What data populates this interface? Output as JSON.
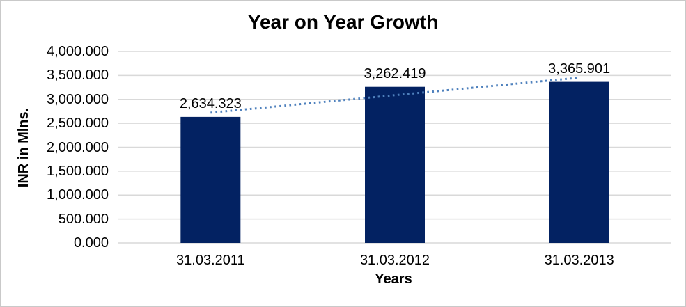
{
  "chart_data": {
    "type": "bar",
    "title": "Year on Year Growth",
    "xlabel": "Years",
    "ylabel": "INR in Mlns.",
    "categories": [
      "31.03.2011",
      "31.03.2012",
      "31.03.2013"
    ],
    "values": [
      2634.323,
      3262.419,
      3365.901
    ],
    "value_labels": [
      "2,634.323",
      "3,262.419",
      "3,365.901"
    ],
    "ylim": [
      0,
      4000
    ],
    "y_ticks": [
      0,
      500,
      1000,
      1500,
      2000,
      2500,
      3000,
      3500,
      4000
    ],
    "y_tick_labels": [
      "0.000",
      "500.000",
      "1,000.000",
      "1,500.000",
      "2,000.000",
      "2,500.000",
      "3,000.000",
      "3,500.000",
      "4,000.000"
    ],
    "grid": true,
    "legend": "none",
    "bar_color": "#032262",
    "gridline_color": "#d9d9d9",
    "text_color": "#000000",
    "background_color": "#ffffff",
    "border_color": "#c9c9c9",
    "trendline": {
      "type": "linear",
      "style": "dotted",
      "color": "#4f81bd",
      "endpoint_values": [
        2721.76,
        3453.34
      ]
    }
  }
}
